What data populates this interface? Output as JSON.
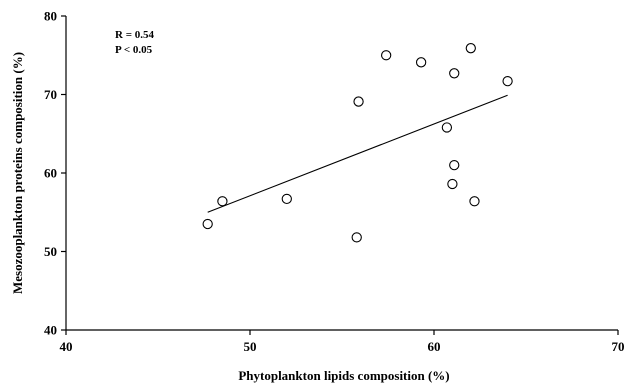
{
  "chart_data": {
    "type": "scatter",
    "title": "",
    "xlabel": "Phytoplankton lipids composition (%)",
    "ylabel": "Mesozooplankton proteins composition (%)",
    "xlim": [
      40,
      70
    ],
    "ylim": [
      40,
      80
    ],
    "x_ticks": [
      40,
      50,
      60,
      70
    ],
    "y_ticks": [
      40,
      50,
      60,
      70,
      80
    ],
    "grid": false,
    "legend": "none",
    "series": [
      {
        "points": [
          {
            "x": 47.7,
            "y": 53.5
          },
          {
            "x": 48.5,
            "y": 56.4
          },
          {
            "x": 52.0,
            "y": 56.7
          },
          {
            "x": 55.8,
            "y": 51.8
          },
          {
            "x": 55.9,
            "y": 69.1
          },
          {
            "x": 57.4,
            "y": 75.0
          },
          {
            "x": 59.3,
            "y": 74.1
          },
          {
            "x": 60.7,
            "y": 65.8
          },
          {
            "x": 61.0,
            "y": 58.6
          },
          {
            "x": 61.1,
            "y": 61.0
          },
          {
            "x": 61.1,
            "y": 72.7
          },
          {
            "x": 62.0,
            "y": 75.9
          },
          {
            "x": 62.2,
            "y": 56.4
          },
          {
            "x": 64.0,
            "y": 71.7
          }
        ]
      }
    ],
    "trendline": {
      "x": [
        47.7,
        64.0
      ],
      "y": [
        55.0,
        69.9
      ]
    },
    "annotations": [
      "R = 0.54",
      "P < 0.05"
    ],
    "annotation_position": "top-left"
  }
}
